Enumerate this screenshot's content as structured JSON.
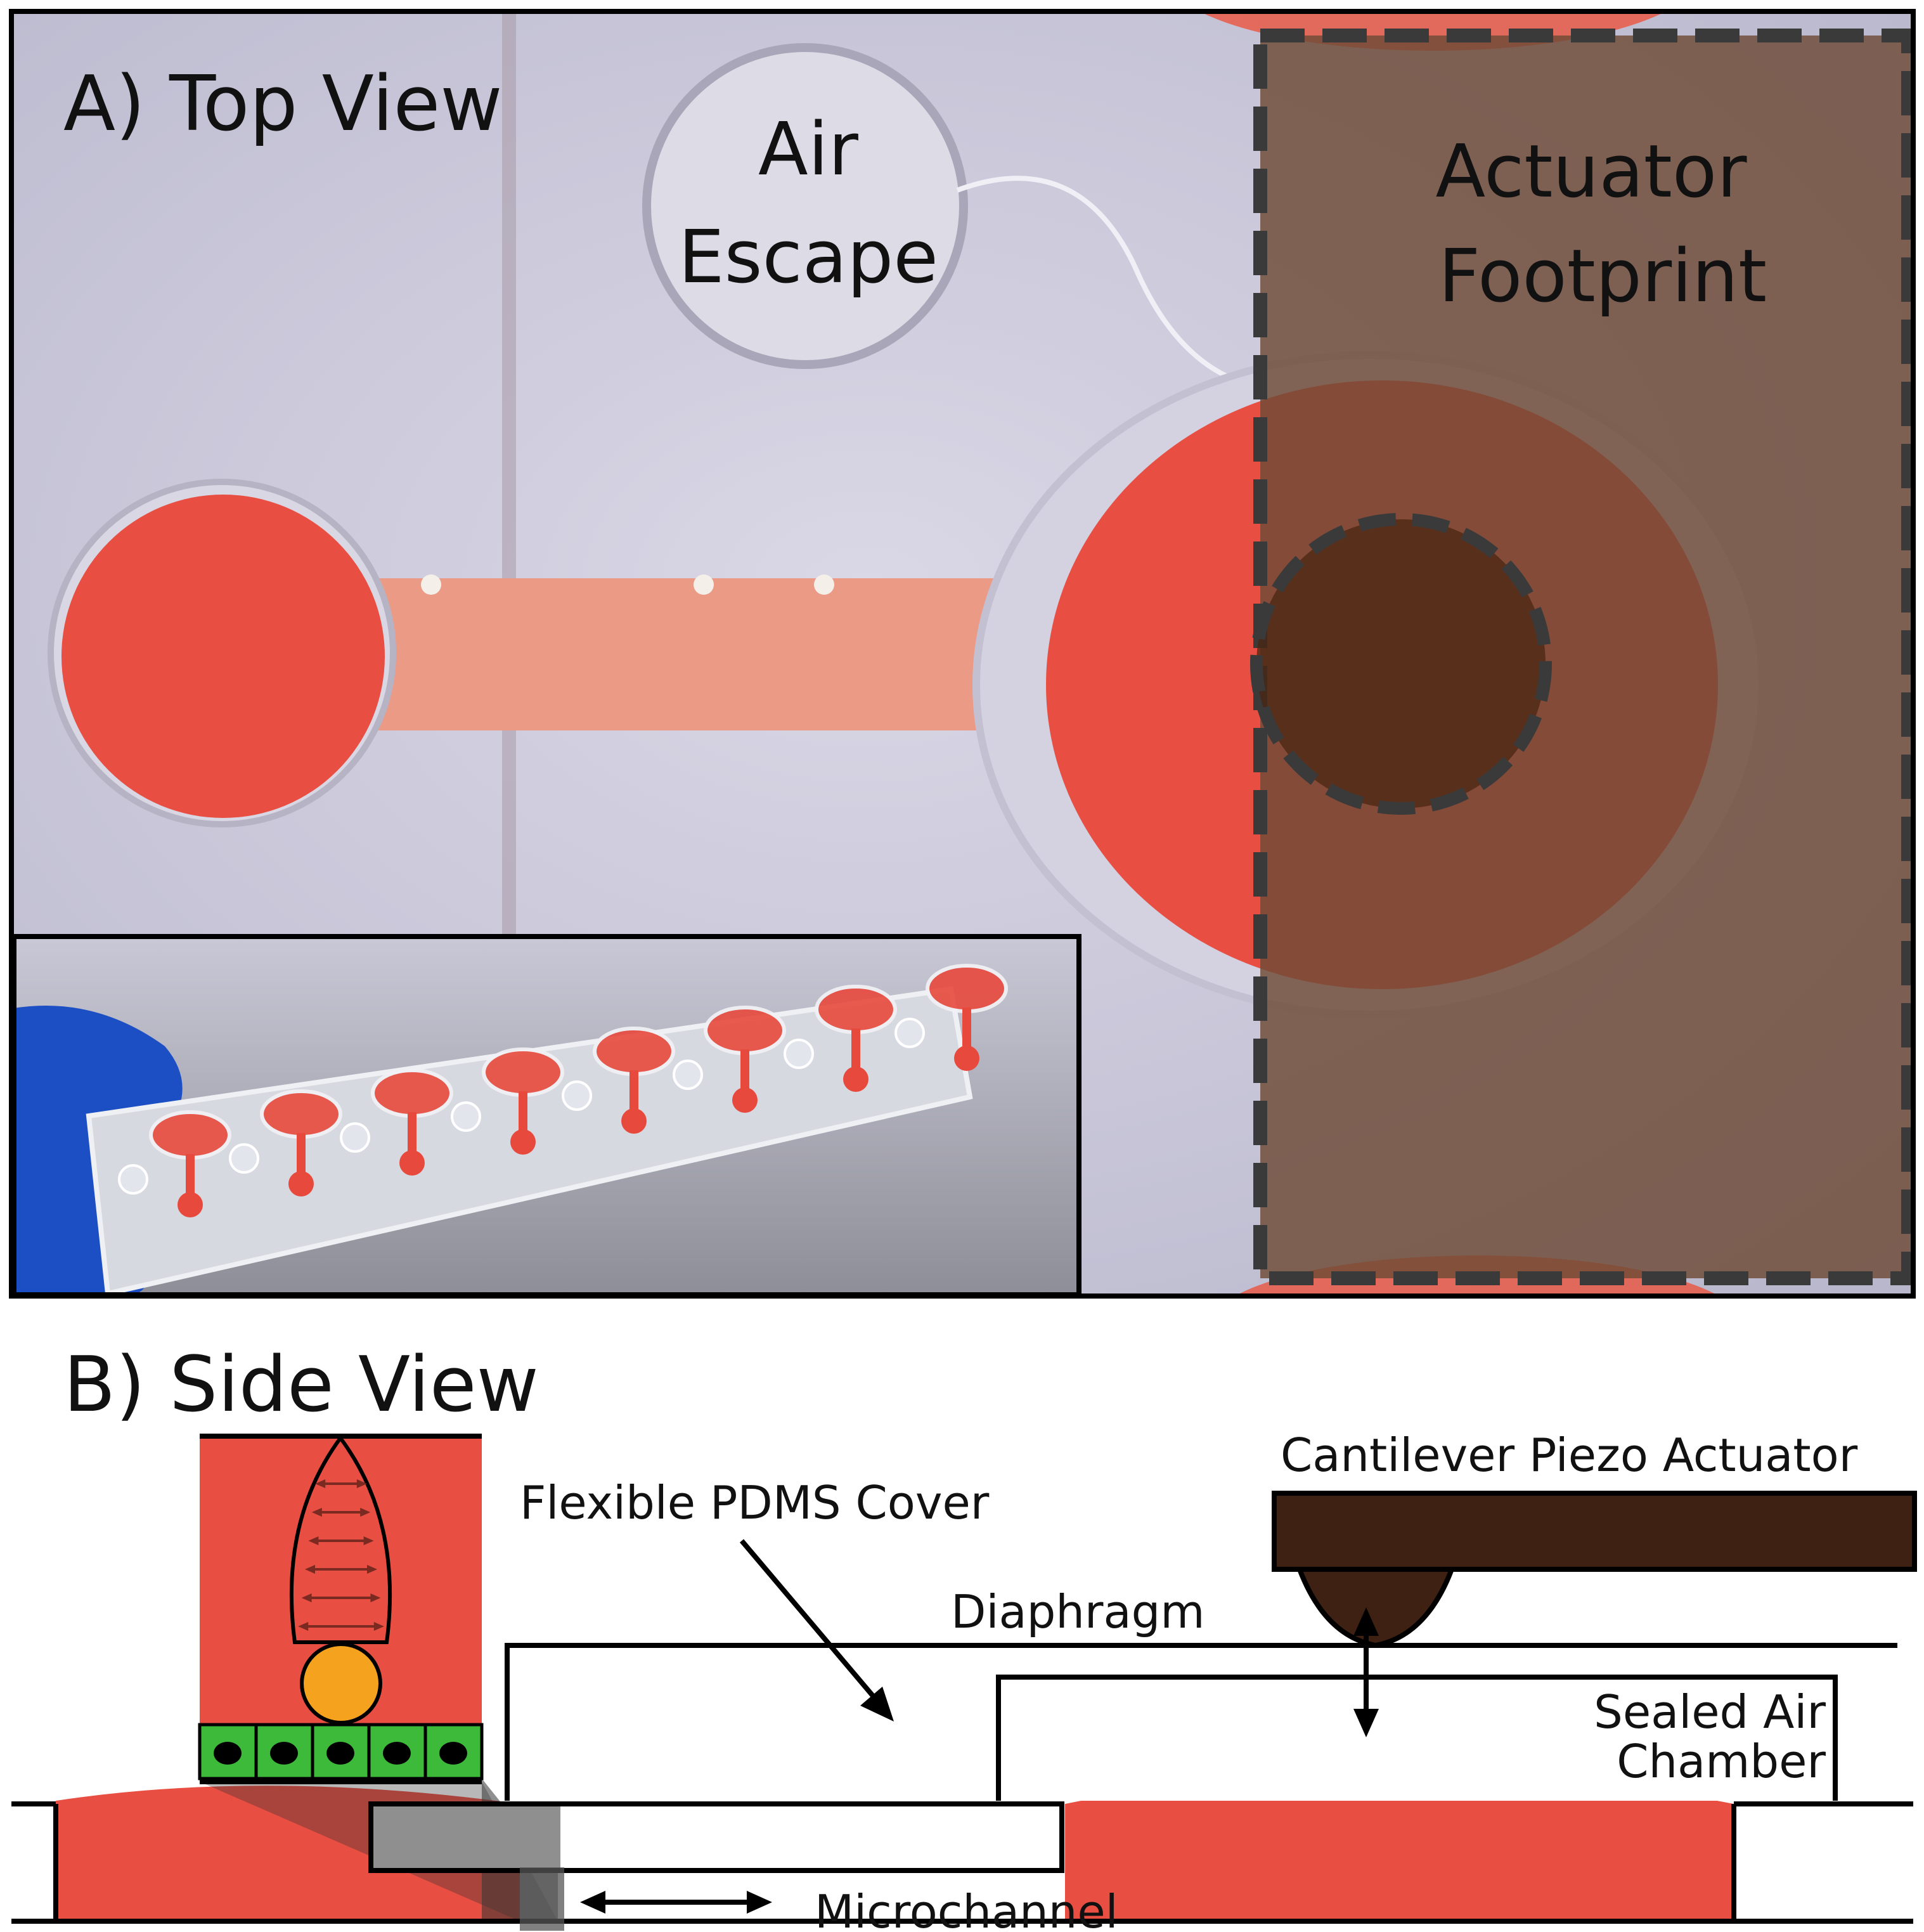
{
  "panel_a": {
    "label": "A) Top View",
    "air_escape": {
      "line1": "Air",
      "line2": "Escape"
    },
    "actuator_footprint": {
      "line1": "Actuator",
      "line2": "Footprint"
    }
  },
  "panel_b": {
    "label": "B) Side View",
    "flexible_cover": "Flexible PDMS Cover",
    "actuator": "Cantilever Piezo Actuator",
    "diaphragm": "Diaphragm",
    "sealed_chamber": {
      "line1": "Sealed Air",
      "line2": "Chamber"
    },
    "microchannel": "Microchannel"
  },
  "colors": {
    "fluid_red": "#e8493d",
    "background_lavender": "#c9c7da",
    "actuator_brown": "#3e2112",
    "footprint_overlay": "#6e4a36",
    "cell_green": "#3dba3a",
    "bead_orange": "#f5a21f"
  }
}
